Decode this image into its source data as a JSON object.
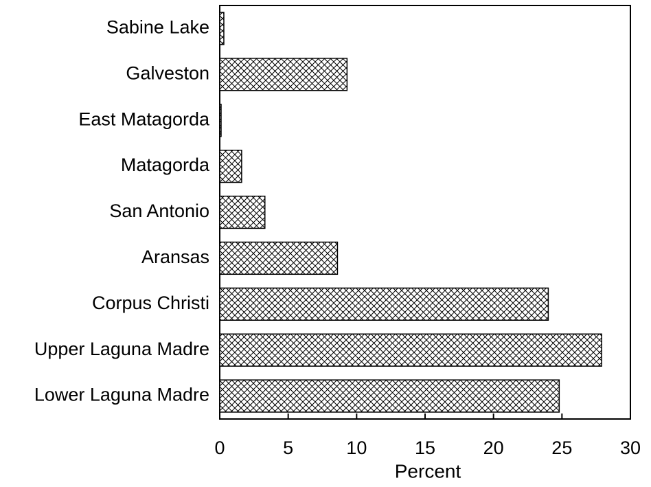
{
  "chart_data": {
    "type": "bar",
    "orientation": "horizontal",
    "categories": [
      "Sabine Lake",
      "Galveston",
      "East Matagorda",
      "Matagorda",
      "San Antonio",
      "Aransas",
      "Corpus Christi",
      "Upper Laguna Madre",
      "Lower Laguna Madre"
    ],
    "values": [
      0.3,
      9.3,
      0.1,
      1.6,
      3.3,
      8.6,
      24.0,
      27.9,
      24.8
    ],
    "color": "#000000",
    "pattern": "crosshatch",
    "x_label": "Percent",
    "xlim": [
      0,
      30
    ],
    "xticks": [
      0,
      5,
      10,
      15,
      20,
      25,
      30
    ],
    "grid": false
  }
}
